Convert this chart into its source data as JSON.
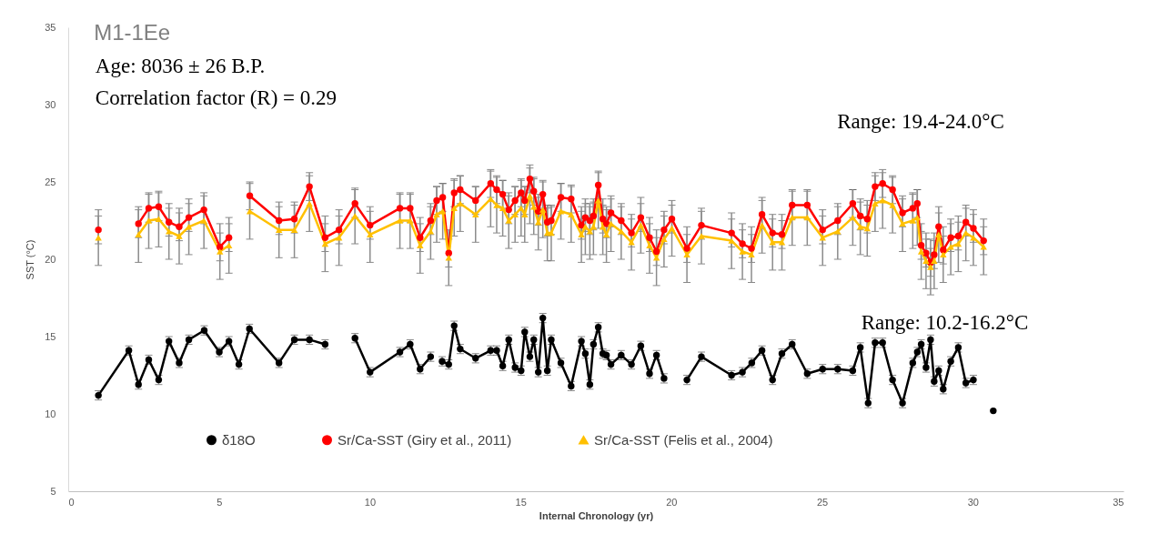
{
  "chart_data": {
    "type": "line",
    "title": "M1-1Ee",
    "xlabel": "Internal Chronology (yr)",
    "ylabel": "SST (°C)",
    "annotations": [
      "Age: 8036 ± 26 B.P.",
      "Correlation factor (R) = 0.29",
      "Range: 19.4-24.0°C",
      "Range: 10.2-16.2°C"
    ],
    "xlim": [
      0,
      35
    ],
    "xticks": [
      0,
      5,
      10,
      15,
      20,
      25,
      30,
      35
    ],
    "ylim": [
      5,
      35
    ],
    "yticks": [
      5,
      10,
      15,
      20,
      25,
      30,
      35
    ],
    "legend": "bottom",
    "series": [
      {
        "name": "δ18O",
        "color": "#000000",
        "marker": "circle",
        "x": [
          1.0,
          2.01,
          2.33,
          2.67,
          3.0,
          3.34,
          3.68,
          4.0,
          4.51,
          5.01,
          5.33,
          5.66,
          6.01,
          6.99,
          7.5,
          8.0,
          8.52,
          9.0,
          9.51,
          10.01,
          11.0,
          11.34,
          11.67,
          12.02,
          12.2,
          12.4,
          12.62,
          12.8,
          13.0,
          13.51,
          14.01,
          14.21,
          14.41,
          14.61,
          14.82,
          15.02,
          15.14,
          15.31,
          15.44,
          15.59,
          15.74,
          15.89,
          16.02,
          16.34,
          16.68,
          17.02,
          17.15,
          17.3,
          17.42,
          17.58,
          17.73,
          17.85,
          18.0,
          18.34,
          18.68,
          18.99,
          19.28,
          19.51,
          19.76,
          20.1,
          20.52,
          21.0,
          22.0,
          22.36,
          22.67,
          23.01,
          23.36,
          23.67,
          24.01,
          24.51,
          25.02,
          25.52,
          26.02,
          26.27,
          26.53,
          26.76,
          27.01,
          27.34,
          27.67,
          28.01,
          28.16,
          28.29,
          28.45,
          28.6,
          28.72,
          28.87,
          29.02,
          29.27,
          29.52,
          29.77,
          30.02,
          30.3,
          30.68
        ],
        "values": [
          11.2,
          14.1,
          11.9,
          13.5,
          12.2,
          14.7,
          13.3,
          14.8,
          15.4,
          14.0,
          14.7,
          13.2,
          15.5,
          13.3,
          14.8,
          14.8,
          14.5,
          null,
          14.9,
          12.7,
          14.0,
          14.5,
          12.9,
          13.7,
          null,
          13.4,
          13.2,
          15.7,
          14.2,
          13.6,
          14.1,
          14.1,
          13.1,
          14.8,
          13.0,
          12.8,
          15.3,
          13.7,
          14.8,
          12.7,
          16.2,
          12.8,
          14.8,
          13.3,
          11.8,
          14.7,
          13.9,
          11.9,
          14.5,
          15.6,
          13.9,
          13.8,
          13.2,
          13.8,
          13.2,
          14.4,
          12.6,
          13.8,
          12.3,
          null,
          12.2,
          13.7,
          12.5,
          12.7,
          13.3,
          14.1,
          12.2,
          13.9,
          14.5,
          12.6,
          12.9,
          12.9,
          12.8,
          14.3,
          10.7,
          14.6,
          14.6,
          12.2,
          10.7,
          13.3,
          14.0,
          14.5,
          13.0,
          14.8,
          12.1,
          12.8,
          11.6,
          13.4,
          14.3,
          12.0,
          12.2,
          null,
          10.2
        ],
        "errors": [
          0.3,
          0.3,
          0.3,
          0.3,
          0.3,
          0.3,
          0.3,
          0.3,
          0.3,
          0.3,
          0.3,
          0.3,
          0.3,
          0.3,
          0.3,
          0.3,
          0.3,
          null,
          0.3,
          0.3,
          0.3,
          0.3,
          0.3,
          0.3,
          null,
          0.3,
          0.3,
          0.3,
          0.3,
          0.3,
          0.3,
          0.3,
          0.3,
          0.3,
          0.3,
          0.3,
          0.3,
          0.3,
          0.3,
          0.3,
          0.3,
          0.3,
          0.3,
          0.3,
          0.3,
          0.3,
          0.3,
          0.3,
          0.3,
          0.3,
          0.3,
          0.3,
          0.3,
          0.3,
          0.3,
          0.3,
          0.3,
          0.3,
          0.3,
          null,
          0.3,
          0.3,
          0.3,
          0.3,
          0.3,
          0.3,
          0.3,
          0.3,
          0.3,
          0.3,
          0.3,
          0.3,
          0.3,
          0.3,
          0.3,
          0.3,
          0.3,
          0.3,
          0.3,
          0.3,
          0.3,
          0.3,
          0.3,
          0.3,
          0.3,
          0.3,
          0.3,
          0.3,
          0.3,
          0.3,
          0.3,
          null,
          null
        ]
      },
      {
        "name": "Sr/Ca-SST (Giry et al., 2011)",
        "color": "#ff0000",
        "marker": "circle",
        "x": [
          1.0,
          1.6,
          2.33,
          2.67,
          3.0,
          3.34,
          3.68,
          4.0,
          4.5,
          5.03,
          5.33,
          5.7,
          6.02,
          6.99,
          7.5,
          8.0,
          8.52,
          8.98,
          9.51,
          10.01,
          11.0,
          11.34,
          11.67,
          12.02,
          12.22,
          12.42,
          12.62,
          12.8,
          13.0,
          13.51,
          14.01,
          14.21,
          14.41,
          14.61,
          14.82,
          15.02,
          15.14,
          15.31,
          15.44,
          15.59,
          15.74,
          15.89,
          16.02,
          16.34,
          16.68,
          17.02,
          17.15,
          17.3,
          17.42,
          17.58,
          17.73,
          17.85,
          18.0,
          18.34,
          18.68,
          18.99,
          19.28,
          19.51,
          19.76,
          20.02,
          20.52,
          21.0,
          22.0,
          22.36,
          22.66,
          23.01,
          23.36,
          23.67,
          24.01,
          24.51,
          25.02,
          25.52,
          26.02,
          26.27,
          26.5,
          26.76,
          27.01,
          27.34,
          27.67,
          28.01,
          28.16,
          28.29,
          28.45,
          28.6,
          28.72,
          28.87,
          29.02,
          29.27,
          29.52,
          29.77,
          30.02,
          30.36
        ],
        "values": [
          21.9,
          null,
          22.3,
          23.3,
          23.4,
          22.4,
          22.1,
          22.7,
          23.2,
          20.8,
          21.4,
          null,
          24.1,
          22.5,
          22.6,
          24.7,
          21.4,
          21.9,
          23.6,
          22.2,
          23.3,
          23.3,
          21.4,
          22.5,
          23.8,
          24.0,
          20.4,
          24.3,
          24.5,
          23.8,
          24.9,
          24.5,
          24.2,
          23.2,
          23.8,
          24.3,
          23.8,
          25.2,
          24.4,
          23.1,
          24.2,
          22.4,
          22.5,
          24.0,
          23.9,
          22.2,
          22.7,
          22.5,
          22.8,
          24.8,
          22.6,
          22.3,
          23.0,
          22.5,
          21.7,
          22.7,
          21.4,
          20.5,
          21.9,
          22.6,
          20.7,
          22.2,
          21.7,
          21.0,
          20.7,
          22.9,
          21.7,
          21.6,
          23.5,
          23.5,
          21.9,
          22.5,
          23.6,
          22.8,
          22.6,
          24.7,
          24.9,
          24.5,
          23.0,
          23.3,
          23.6,
          20.9,
          20.4,
          19.8,
          20.3,
          22.1,
          20.6,
          21.4,
          21.5,
          22.4,
          22.0,
          21.2
        ],
        "errors": [
          0.9,
          null,
          0.9,
          0.9,
          0.9,
          0.9,
          0.9,
          0.9,
          0.9,
          0.9,
          0.9,
          null,
          0.9,
          0.9,
          0.9,
          0.9,
          0.9,
          0.9,
          0.9,
          0.9,
          0.9,
          0.9,
          0.9,
          0.9,
          0.9,
          0.9,
          0.9,
          0.9,
          0.9,
          0.9,
          0.9,
          0.9,
          0.9,
          0.9,
          0.9,
          0.9,
          0.9,
          0.9,
          0.9,
          0.9,
          0.9,
          0.9,
          0.9,
          0.9,
          0.9,
          0.9,
          0.9,
          0.9,
          0.9,
          0.9,
          0.9,
          0.9,
          0.9,
          0.9,
          0.9,
          0.9,
          0.9,
          0.9,
          0.9,
          0.9,
          0.9,
          0.9,
          0.9,
          0.9,
          0.9,
          0.9,
          0.9,
          0.9,
          0.9,
          0.9,
          0.9,
          0.9,
          0.9,
          0.9,
          0.9,
          0.9,
          0.9,
          0.9,
          0.9,
          0.9,
          0.9,
          0.9,
          0.9,
          0.9,
          0.9,
          0.9,
          0.9,
          0.9,
          0.9,
          0.9,
          0.9,
          0.9
        ]
      },
      {
        "name": "Sr/Ca-SST (Felis et al., 2004)",
        "color": "#ffc000",
        "marker": "triangle",
        "x": [
          1.0,
          1.6,
          2.33,
          2.67,
          3.0,
          3.34,
          3.68,
          4.0,
          4.5,
          5.03,
          5.33,
          5.7,
          6.02,
          6.99,
          7.5,
          8.0,
          8.52,
          8.98,
          9.51,
          10.01,
          11.0,
          11.34,
          11.67,
          12.02,
          12.22,
          12.42,
          12.62,
          12.8,
          13.0,
          13.51,
          14.01,
          14.21,
          14.41,
          14.61,
          14.82,
          15.02,
          15.14,
          15.31,
          15.44,
          15.59,
          15.74,
          15.89,
          16.02,
          16.34,
          16.68,
          17.02,
          17.15,
          17.3,
          17.42,
          17.58,
          17.73,
          17.85,
          18.0,
          18.34,
          18.68,
          18.99,
          19.28,
          19.51,
          19.76,
          20.02,
          20.52,
          21.0,
          22.0,
          22.36,
          22.66,
          23.01,
          23.36,
          23.67,
          24.01,
          24.51,
          25.02,
          25.52,
          26.02,
          26.27,
          26.5,
          26.76,
          27.01,
          27.34,
          27.67,
          28.01,
          28.16,
          28.29,
          28.45,
          28.6,
          28.72,
          28.87,
          29.02,
          29.27,
          29.52,
          29.77,
          30.02,
          30.36
        ],
        "values": [
          21.4,
          null,
          21.6,
          22.5,
          22.6,
          21.8,
          21.5,
          22.1,
          22.5,
          20.5,
          20.9,
          null,
          23.1,
          21.9,
          21.9,
          23.6,
          21.0,
          21.4,
          22.8,
          21.6,
          22.5,
          22.5,
          20.9,
          21.8,
          22.9,
          23.1,
          20.1,
          23.3,
          23.6,
          22.9,
          23.9,
          23.5,
          23.3,
          22.5,
          22.9,
          23.3,
          22.9,
          24.1,
          23.4,
          22.4,
          23.2,
          21.7,
          21.7,
          23.1,
          22.9,
          21.6,
          22.1,
          21.8,
          22.1,
          23.8,
          22.1,
          21.6,
          22.3,
          21.8,
          21.1,
          22.2,
          20.9,
          20.1,
          21.3,
          22.0,
          20.3,
          21.5,
          21.2,
          20.5,
          20.3,
          22.2,
          21.1,
          21.1,
          22.7,
          22.7,
          21.4,
          21.8,
          22.7,
          22.1,
          22.0,
          23.6,
          23.8,
          23.5,
          22.3,
          22.5,
          22.7,
          20.5,
          19.9,
          19.5,
          19.9,
          21.6,
          20.3,
          20.8,
          21.0,
          21.7,
          21.4,
          20.8
        ],
        "errors": [
          1.8,
          null,
          1.8,
          1.8,
          1.8,
          1.8,
          1.8,
          1.8,
          1.8,
          1.8,
          1.8,
          null,
          1.8,
          1.8,
          1.8,
          1.8,
          1.8,
          1.8,
          1.8,
          1.8,
          1.8,
          1.8,
          1.8,
          1.8,
          1.8,
          1.8,
          1.8,
          1.8,
          1.8,
          1.8,
          1.8,
          1.8,
          1.8,
          1.8,
          1.8,
          1.8,
          1.8,
          1.8,
          1.8,
          1.8,
          1.8,
          1.8,
          1.8,
          1.8,
          1.8,
          1.8,
          1.8,
          1.8,
          1.8,
          1.8,
          1.8,
          1.8,
          1.8,
          1.8,
          1.8,
          1.8,
          1.8,
          1.8,
          1.8,
          1.8,
          1.8,
          1.8,
          1.8,
          1.8,
          1.8,
          1.8,
          1.8,
          1.8,
          1.8,
          1.8,
          1.8,
          1.8,
          1.8,
          1.8,
          1.8,
          1.8,
          1.8,
          1.8,
          1.8,
          1.8,
          1.8,
          1.8,
          1.8,
          1.8,
          1.8,
          1.8,
          1.8,
          1.8,
          1.8,
          1.8,
          1.8,
          1.8
        ]
      }
    ]
  }
}
